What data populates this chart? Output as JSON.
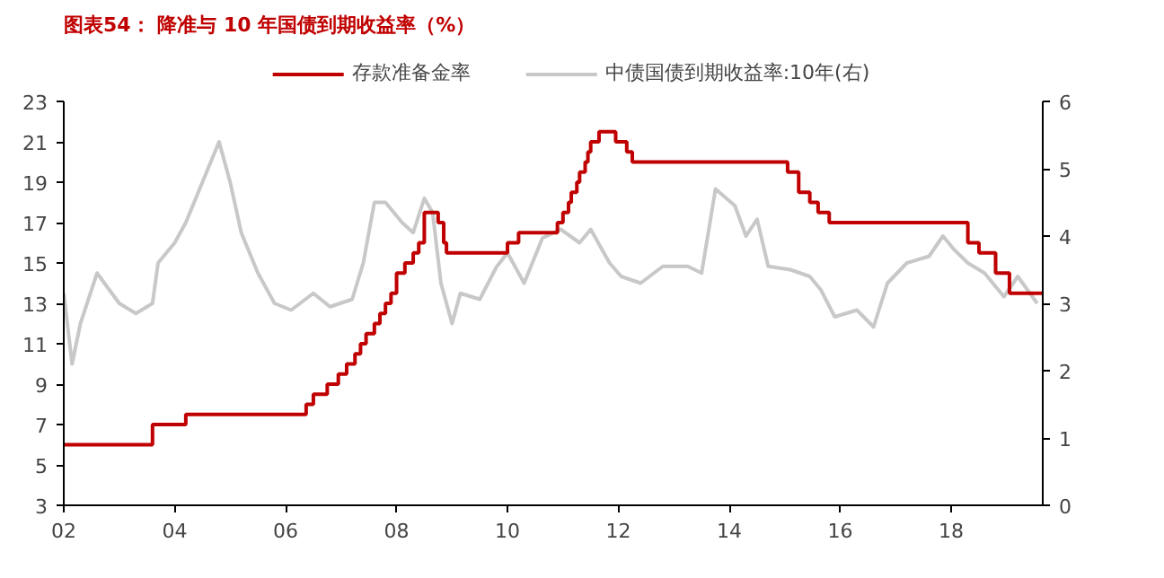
{
  "chart_data": {
    "type": "step",
    "title": "图表54：   降准与 10 年国债到期收益率（%）",
    "legend": "top",
    "grid": false,
    "xlim": [
      2002,
      2019.65
    ],
    "xticks": [
      {
        "value": 2002,
        "label": "02"
      },
      {
        "value": 2004,
        "label": "04"
      },
      {
        "value": 2006,
        "label": "06"
      },
      {
        "value": 2008,
        "label": "08"
      },
      {
        "value": 2010,
        "label": "10"
      },
      {
        "value": 2012,
        "label": "12"
      },
      {
        "value": 2014,
        "label": "14"
      },
      {
        "value": 2016,
        "label": "16"
      },
      {
        "value": 2018,
        "label": "18"
      }
    ],
    "ylim": [
      3,
      23
    ],
    "yticks": [
      3,
      5,
      7,
      9,
      11,
      13,
      15,
      17,
      19,
      21,
      23
    ],
    "y2lim": [
      0,
      6
    ],
    "y2ticks": [
      0,
      1,
      2,
      3,
      4,
      5,
      6
    ],
    "series": [
      {
        "name": "存款准备金率",
        "color": "#c00000",
        "type": "step",
        "x": [
          2002,
          2003.6,
          2004.2,
          2006.37,
          2006.5,
          2006.75,
          2006.95,
          2007.1,
          2007.25,
          2007.35,
          2007.45,
          2007.6,
          2007.7,
          2007.8,
          2007.9,
          2008.0,
          2008.15,
          2008.3,
          2008.4,
          2008.5,
          2008.75,
          2008.85,
          2008.9,
          2009.85,
          2010.0,
          2010.2,
          2010.9,
          2011.0,
          2011.1,
          2011.15,
          2011.25,
          2011.3,
          2011.4,
          2011.45,
          2011.5,
          2011.65,
          2011.95,
          2012.15,
          2012.25,
          2015.05,
          2015.25,
          2015.45,
          2015.6,
          2015.8,
          2016.1,
          2018.3,
          2018.5,
          2018.8,
          2019.05,
          2019.65
        ],
        "values": [
          6,
          7,
          7.5,
          8,
          8.5,
          9,
          9.5,
          10,
          10.5,
          11,
          11.5,
          12,
          12.5,
          13,
          13.5,
          14.5,
          15,
          15.5,
          16,
          17.5,
          17,
          16,
          15.5,
          15.5,
          16,
          16.5,
          17,
          17.5,
          18,
          18.5,
          19,
          19.5,
          20,
          20.5,
          21,
          21.5,
          21,
          20.5,
          20,
          19.5,
          18.5,
          18,
          17.5,
          17,
          17,
          16,
          15.5,
          14.5,
          13.5,
          13.5
        ]
      },
      {
        "name": "中债国债到期收益率:10年(右)",
        "color": "#c8c8c8",
        "type": "line",
        "axis": "y2",
        "x": [
          2002,
          2002.15,
          2002.3,
          2002.6,
          2003,
          2003.3,
          2003.6,
          2003.7,
          2004,
          2004.2,
          2004.5,
          2004.8,
          2005.0,
          2005.2,
          2005.5,
          2005.8,
          2006.1,
          2006.5,
          2006.8,
          2007.2,
          2007.4,
          2007.6,
          2007.8,
          2008.1,
          2008.3,
          2008.5,
          2008.65,
          2008.8,
          2009.0,
          2009.15,
          2009.5,
          2009.8,
          2010.0,
          2010.3,
          2010.63,
          2010.96,
          2011.3,
          2011.5,
          2011.84,
          2012.05,
          2012.4,
          2012.8,
          2013.25,
          2013.5,
          2013.75,
          2014.1,
          2014.3,
          2014.5,
          2014.7,
          2015.1,
          2015.45,
          2015.65,
          2015.9,
          2016.3,
          2016.6,
          2016.85,
          2017.2,
          2017.6,
          2017.85,
          2018.05,
          2018.3,
          2018.6,
          2018.95,
          2019.2,
          2019.55
        ],
        "values": [
          3.15,
          2.1,
          2.7,
          3.45,
          3.0,
          2.85,
          3.0,
          3.6,
          3.9,
          4.2,
          4.8,
          5.4,
          4.8,
          4.05,
          3.45,
          3.0,
          2.9,
          3.15,
          2.95,
          3.06,
          3.6,
          4.5,
          4.5,
          4.2,
          4.05,
          4.56,
          4.35,
          3.3,
          2.7,
          3.15,
          3.06,
          3.54,
          3.75,
          3.3,
          3.97,
          4.1,
          3.9,
          4.1,
          3.6,
          3.4,
          3.3,
          3.55,
          3.55,
          3.45,
          4.7,
          4.45,
          4.0,
          4.25,
          3.55,
          3.5,
          3.4,
          3.2,
          2.8,
          2.9,
          2.65,
          3.3,
          3.6,
          3.7,
          4.0,
          3.8,
          3.6,
          3.45,
          3.1,
          3.4,
          3.0
        ]
      }
    ]
  }
}
